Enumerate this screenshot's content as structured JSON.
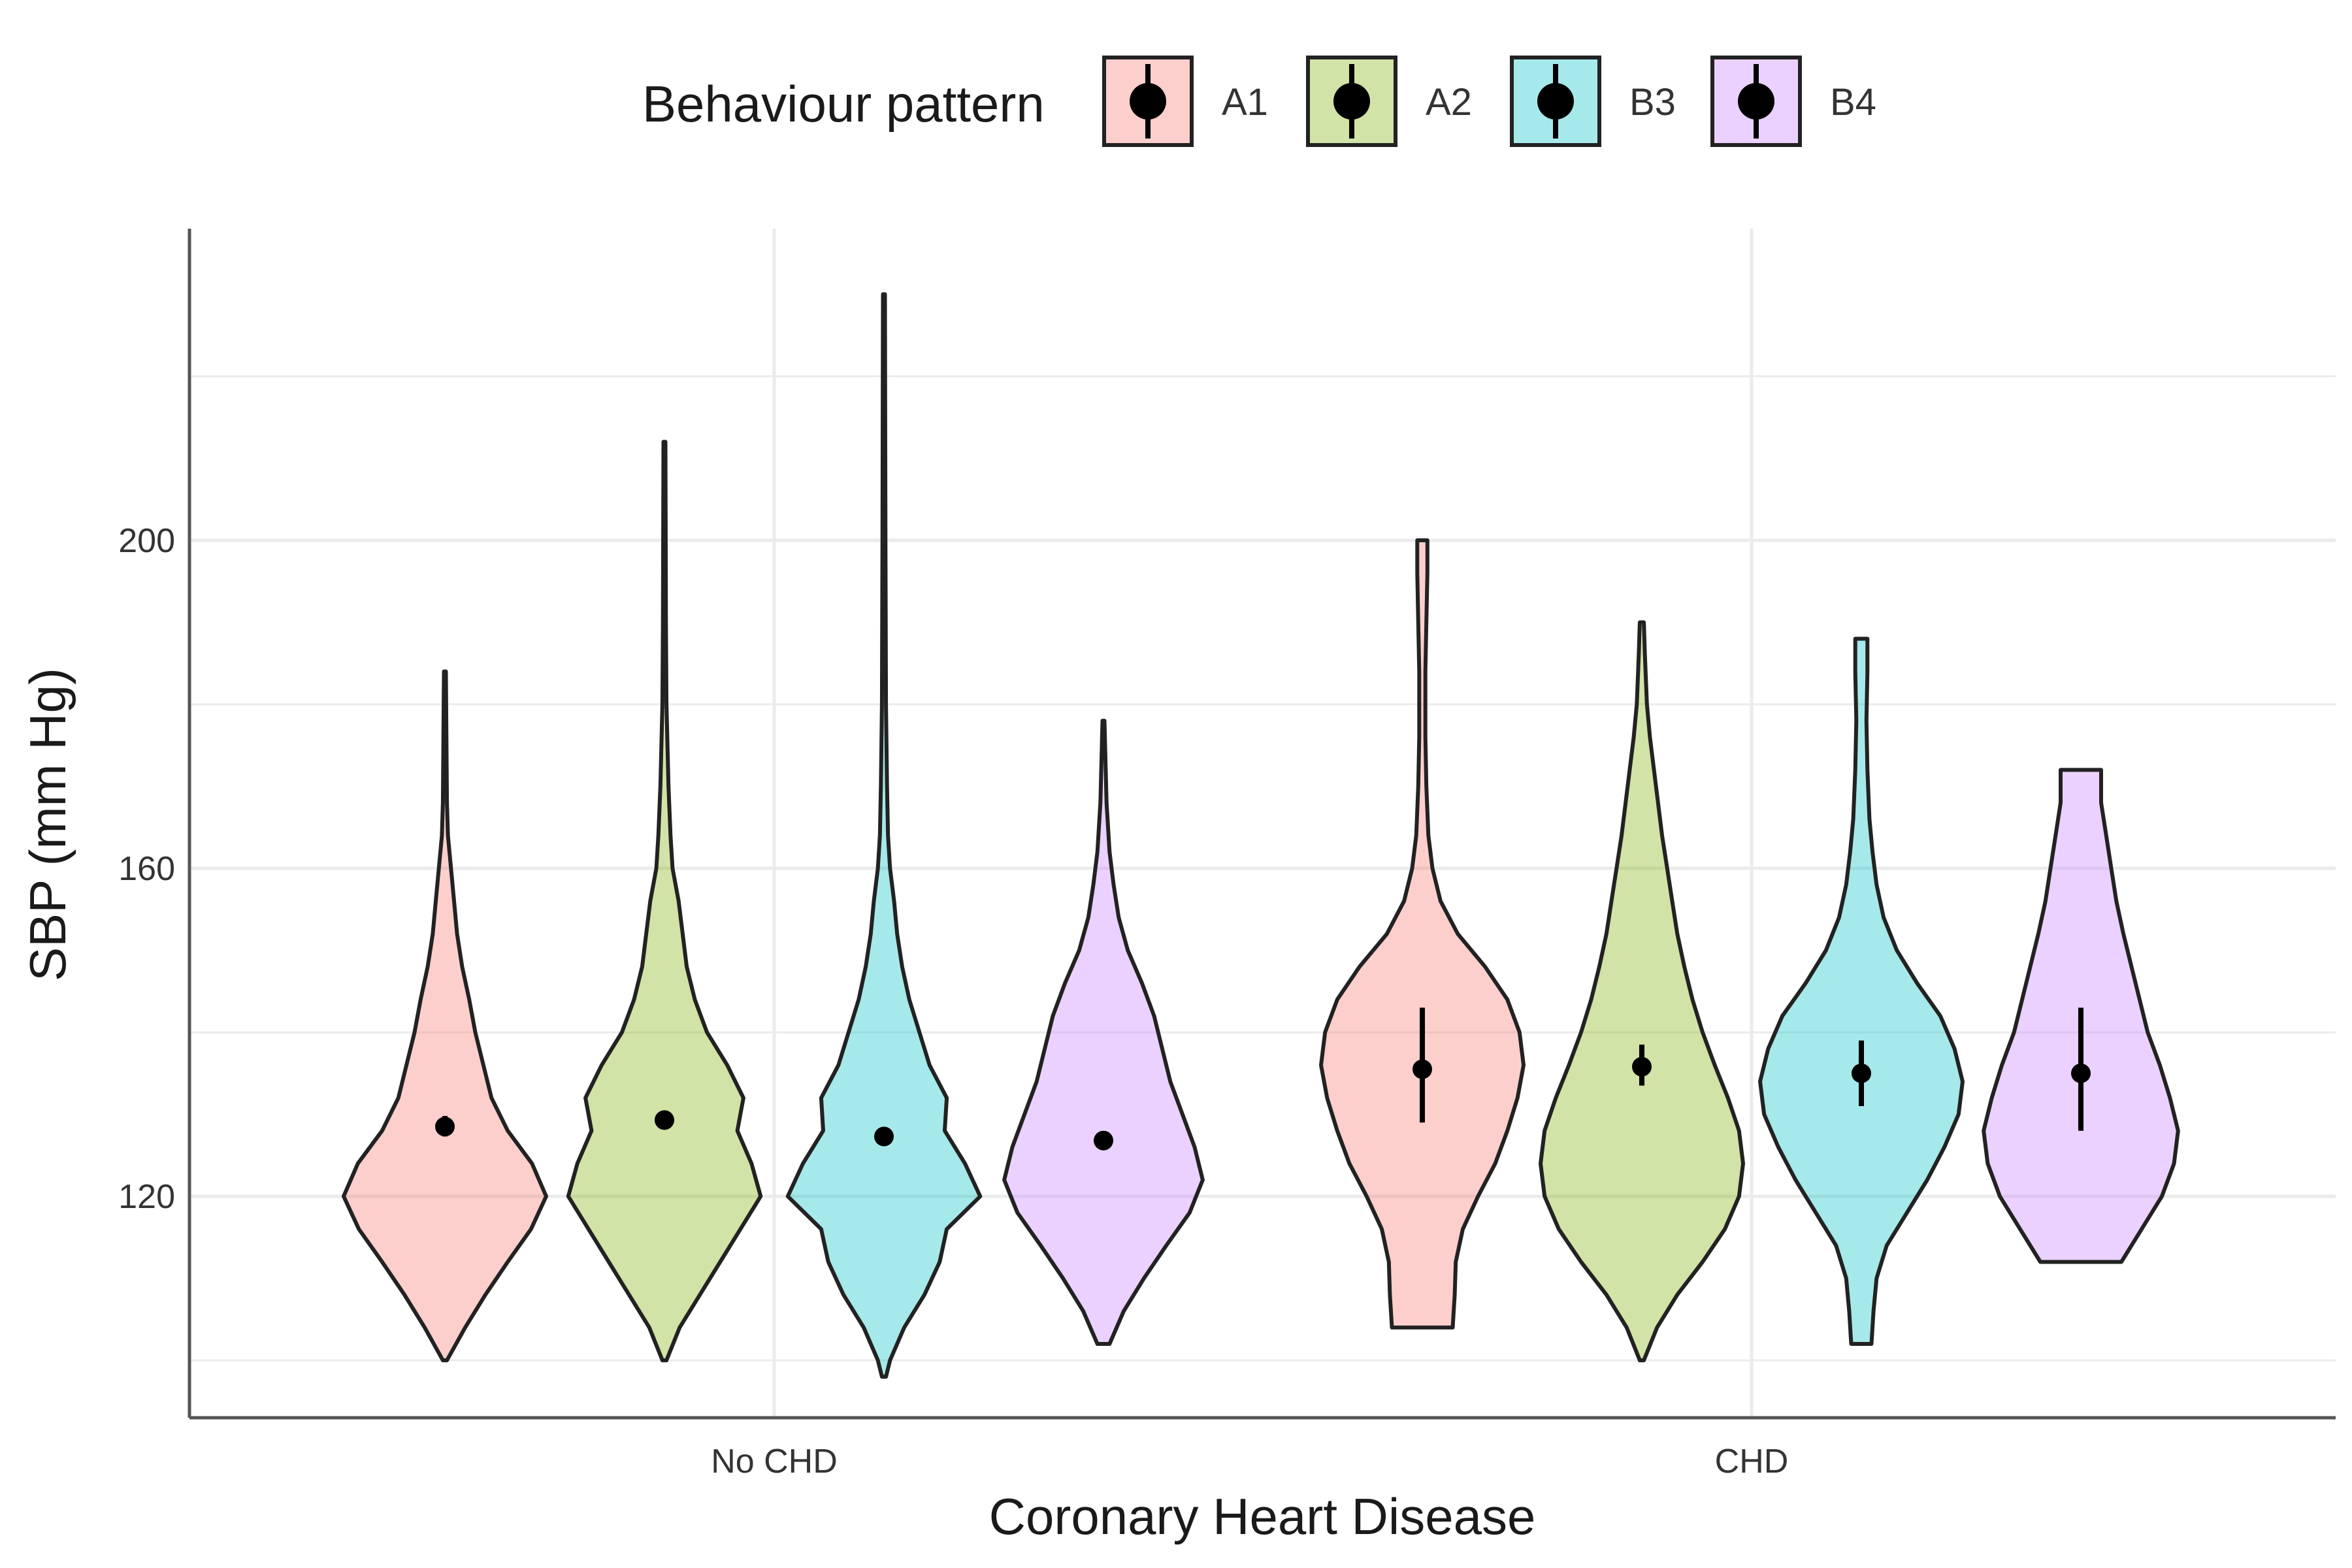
{
  "chart_data": {
    "type": "violin",
    "title": "",
    "xlabel": "Coronary Heart Disease",
    "ylabel": "SBP (mm Hg)",
    "categories": [
      "No CHD",
      "CHD"
    ],
    "yticks": [
      120,
      160,
      200
    ],
    "ylim": [
      93,
      238
    ],
    "grid": true,
    "legend": {
      "title": "Behaviour pattern",
      "position": "top",
      "entries": [
        "A1",
        "A2",
        "B3",
        "B4"
      ]
    },
    "colors": {
      "A1": "#f8766d",
      "A2": "#7cae00",
      "B3": "#00bfc4",
      "B4": "#c77cff"
    },
    "series": [
      {
        "name": "A1",
        "groups": [
          {
            "category": "No CHD",
            "min": 100,
            "max": 184,
            "mean": 128.5,
            "ci": [
              127.3,
              129.8
            ],
            "profile": [
              [
                100,
                0.02
              ],
              [
                104,
                0.2
              ],
              [
                108,
                0.4
              ],
              [
                112,
                0.62
              ],
              [
                116,
                0.85
              ],
              [
                120,
                1.0
              ],
              [
                124,
                0.86
              ],
              [
                128,
                0.62
              ],
              [
                132,
                0.46
              ],
              [
                136,
                0.38
              ],
              [
                140,
                0.3
              ],
              [
                144,
                0.24
              ],
              [
                148,
                0.17
              ],
              [
                152,
                0.12
              ],
              [
                156,
                0.09
              ],
              [
                160,
                0.06
              ],
              [
                164,
                0.03
              ],
              [
                168,
                0.02
              ],
              [
                176,
                0.015
              ],
              [
                184,
                0.01
              ]
            ]
          },
          {
            "category": "CHD",
            "min": 104,
            "max": 200,
            "mean": 135.5,
            "ci": [
              129,
              143
            ],
            "profile": [
              [
                104,
                0.3
              ],
              [
                108,
                0.32
              ],
              [
                112,
                0.33
              ],
              [
                116,
                0.4
              ],
              [
                120,
                0.55
              ],
              [
                124,
                0.72
              ],
              [
                128,
                0.84
              ],
              [
                132,
                0.94
              ],
              [
                136,
                1.0
              ],
              [
                140,
                0.96
              ],
              [
                144,
                0.84
              ],
              [
                148,
                0.62
              ],
              [
                152,
                0.35
              ],
              [
                156,
                0.18
              ],
              [
                160,
                0.1
              ],
              [
                164,
                0.06
              ],
              [
                170,
                0.04
              ],
              [
                176,
                0.03
              ],
              [
                184,
                0.03
              ],
              [
                190,
                0.04
              ],
              [
                196,
                0.05
              ],
              [
                200,
                0.05
              ]
            ]
          }
        ]
      },
      {
        "name": "A2",
        "groups": [
          {
            "category": "No CHD",
            "min": 100,
            "max": 212,
            "mean": 129.3,
            "ci": [
              128.6,
              130.0
            ],
            "profile": [
              [
                100,
                0.02
              ],
              [
                104,
                0.15
              ],
              [
                108,
                0.35
              ],
              [
                112,
                0.55
              ],
              [
                116,
                0.75
              ],
              [
                120,
                0.95
              ],
              [
                124,
                0.86
              ],
              [
                128,
                0.72
              ],
              [
                132,
                0.78
              ],
              [
                136,
                0.62
              ],
              [
                140,
                0.42
              ],
              [
                144,
                0.3
              ],
              [
                148,
                0.22
              ],
              [
                152,
                0.18
              ],
              [
                156,
                0.14
              ],
              [
                160,
                0.08
              ],
              [
                164,
                0.06
              ],
              [
                170,
                0.04
              ],
              [
                180,
                0.02
              ],
              [
                190,
                0.015
              ],
              [
                212,
                0.01
              ]
            ]
          },
          {
            "category": "CHD",
            "min": 100,
            "max": 190,
            "mean": 135.8,
            "ci": [
              133.5,
              138.5
            ],
            "profile": [
              [
                100,
                0.02
              ],
              [
                104,
                0.15
              ],
              [
                108,
                0.35
              ],
              [
                112,
                0.6
              ],
              [
                116,
                0.82
              ],
              [
                120,
                0.96
              ],
              [
                124,
                1.0
              ],
              [
                128,
                0.96
              ],
              [
                132,
                0.85
              ],
              [
                136,
                0.72
              ],
              [
                140,
                0.6
              ],
              [
                144,
                0.5
              ],
              [
                148,
                0.42
              ],
              [
                152,
                0.35
              ],
              [
                156,
                0.3
              ],
              [
                160,
                0.25
              ],
              [
                164,
                0.2
              ],
              [
                168,
                0.16
              ],
              [
                172,
                0.12
              ],
              [
                176,
                0.08
              ],
              [
                180,
                0.05
              ],
              [
                186,
                0.03
              ],
              [
                190,
                0.02
              ]
            ]
          }
        ]
      },
      {
        "name": "B3",
        "groups": [
          {
            "category": "No CHD",
            "min": 98,
            "max": 230,
            "mean": 127.3,
            "ci": [
              126.7,
              127.9
            ],
            "profile": [
              [
                98,
                0.02
              ],
              [
                100,
                0.06
              ],
              [
                104,
                0.2
              ],
              [
                108,
                0.4
              ],
              [
                112,
                0.55
              ],
              [
                116,
                0.62
              ],
              [
                120,
                0.95
              ],
              [
                124,
                0.8
              ],
              [
                128,
                0.6
              ],
              [
                132,
                0.62
              ],
              [
                136,
                0.45
              ],
              [
                140,
                0.35
              ],
              [
                144,
                0.25
              ],
              [
                148,
                0.18
              ],
              [
                152,
                0.13
              ],
              [
                156,
                0.1
              ],
              [
                160,
                0.06
              ],
              [
                164,
                0.04
              ],
              [
                170,
                0.03
              ],
              [
                180,
                0.02
              ],
              [
                200,
                0.015
              ],
              [
                230,
                0.01
              ]
            ]
          },
          {
            "category": "CHD",
            "min": 102,
            "max": 188,
            "mean": 135.0,
            "ci": [
              131,
              139
            ],
            "profile": [
              [
                102,
                0.1
              ],
              [
                106,
                0.12
              ],
              [
                110,
                0.15
              ],
              [
                114,
                0.25
              ],
              [
                118,
                0.45
              ],
              [
                122,
                0.65
              ],
              [
                126,
                0.82
              ],
              [
                130,
                0.96
              ],
              [
                134,
                1.0
              ],
              [
                138,
                0.92
              ],
              [
                142,
                0.78
              ],
              [
                146,
                0.55
              ],
              [
                150,
                0.35
              ],
              [
                154,
                0.22
              ],
              [
                158,
                0.15
              ],
              [
                162,
                0.11
              ],
              [
                166,
                0.08
              ],
              [
                172,
                0.06
              ],
              [
                178,
                0.05
              ],
              [
                184,
                0.06
              ],
              [
                188,
                0.06
              ]
            ]
          }
        ]
      },
      {
        "name": "B4",
        "groups": [
          {
            "category": "No CHD",
            "min": 102,
            "max": 178,
            "mean": 126.8,
            "ci": [
              126.2,
              127.4
            ],
            "profile": [
              [
                102,
                0.06
              ],
              [
                106,
                0.2
              ],
              [
                110,
                0.4
              ],
              [
                114,
                0.62
              ],
              [
                118,
                0.85
              ],
              [
                122,
                0.98
              ],
              [
                126,
                0.9
              ],
              [
                130,
                0.78
              ],
              [
                134,
                0.66
              ],
              [
                138,
                0.58
              ],
              [
                142,
                0.5
              ],
              [
                146,
                0.38
              ],
              [
                150,
                0.24
              ],
              [
                154,
                0.15
              ],
              [
                158,
                0.1
              ],
              [
                162,
                0.06
              ],
              [
                168,
                0.03
              ],
              [
                178,
                0.01
              ]
            ]
          },
          {
            "category": "CHD",
            "min": 112,
            "max": 172,
            "mean": 135.0,
            "ci": [
              128,
              143
            ],
            "profile": [
              [
                112,
                0.4
              ],
              [
                116,
                0.6
              ],
              [
                120,
                0.8
              ],
              [
                124,
                0.92
              ],
              [
                128,
                0.96
              ],
              [
                132,
                0.88
              ],
              [
                136,
                0.78
              ],
              [
                140,
                0.66
              ],
              [
                144,
                0.58
              ],
              [
                148,
                0.5
              ],
              [
                152,
                0.42
              ],
              [
                156,
                0.35
              ],
              [
                160,
                0.3
              ],
              [
                164,
                0.25
              ],
              [
                168,
                0.2
              ],
              [
                172,
                0.2
              ]
            ]
          }
        ]
      }
    ]
  }
}
